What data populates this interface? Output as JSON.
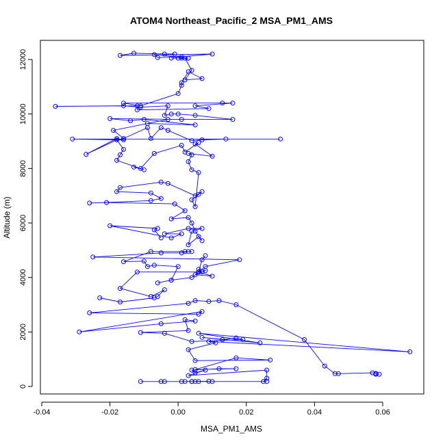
{
  "chart_data": {
    "type": "line",
    "title": "ATOM4 Northeast_Pacific_2 MSA_PM1_AMS",
    "xlabel": "MSA_PM1_AMS",
    "ylabel": "Altitude (m)",
    "xlim": [
      -0.04,
      0.07
    ],
    "ylim": [
      0,
      12200
    ],
    "xticks": [
      -0.04,
      -0.02,
      0.0,
      0.02,
      0.04,
      0.06
    ],
    "xtick_labels": [
      "-0.04",
      "-0.02",
      "0.00",
      "0.02",
      "0.04",
      "0.06"
    ],
    "yticks": [
      0,
      2000,
      4000,
      6000,
      8000,
      10000,
      12000
    ],
    "ytick_labels": [
      "0",
      "2000",
      "4000",
      "6000",
      "8000",
      "10000",
      "12000"
    ],
    "grid": false,
    "color": "#0000ff",
    "marker": "open-circle",
    "series": [
      {
        "points": [
          [
            0.005,
            180
          ],
          [
            0.01,
            180
          ],
          [
            0.004,
            180
          ],
          [
            -0.005,
            180
          ],
          [
            -0.011,
            180
          ],
          [
            -0.004,
            180
          ],
          [
            0.001,
            180
          ],
          [
            0.006,
            180
          ],
          [
            0.009,
            190
          ],
          [
            0.002,
            180
          ],
          [
            0.004,
            180
          ],
          [
            0.026,
            180
          ],
          [
            0.025,
            180
          ],
          [
            0.026,
            300
          ],
          [
            0.026,
            600
          ],
          [
            0.003,
            400
          ],
          [
            0.008,
            600
          ],
          [
            0.005,
            500
          ],
          [
            0.004,
            600
          ],
          [
            0.012,
            650
          ],
          [
            0.017,
            650
          ],
          [
            0.005,
            620
          ],
          [
            0.017,
            1050
          ],
          [
            0.027,
            970
          ],
          [
            0.005,
            950
          ],
          [
            0.003,
            1350
          ],
          [
            0.011,
            1600
          ],
          [
            0.009,
            1650
          ],
          [
            0.068,
            1270
          ],
          [
            0.006,
            1950
          ],
          [
            0.024,
            1600
          ],
          [
            0.007,
            1800
          ],
          [
            0.013,
            1720
          ],
          [
            0.017,
            1780
          ],
          [
            0.019,
            1720
          ],
          [
            0.004,
            1650
          ],
          [
            -0.004,
            1950
          ],
          [
            -0.011,
            1980
          ],
          [
            0.003,
            2050
          ],
          [
            0.002,
            2450
          ],
          [
            0.005,
            2400
          ],
          [
            -0.005,
            2300
          ],
          [
            -0.029,
            2000
          ],
          [
            0.007,
            2750
          ],
          [
            0.006,
            2650
          ],
          [
            -0.026,
            2700
          ],
          [
            0.003,
            3050
          ],
          [
            0.005,
            3150
          ],
          [
            0.009,
            3120
          ],
          [
            0.012,
            3150
          ],
          [
            0.017,
            3000
          ],
          [
            0.037,
            1720
          ],
          [
            0.043,
            750
          ],
          [
            0.046,
            470
          ],
          [
            0.047,
            470
          ],
          [
            0.057,
            500
          ],
          [
            0.058,
            480
          ],
          [
            0.059,
            450
          ],
          [
            0.058,
            450
          ]
        ]
      },
      {
        "points": [
          [
            -0.023,
            3250
          ],
          [
            -0.017,
            3100
          ],
          [
            -0.007,
            3250
          ],
          [
            -0.006,
            3300
          ],
          [
            -0.004,
            3550
          ],
          [
            -0.008,
            3300
          ],
          [
            -0.017,
            3600
          ],
          [
            -0.012,
            4200
          ],
          [
            0.007,
            4200
          ],
          [
            0.006,
            4300
          ],
          [
            0.008,
            4250
          ],
          [
            0.005,
            4100
          ],
          [
            0.01,
            4050
          ],
          [
            0.006,
            4200
          ],
          [
            0.004,
            4000
          ],
          [
            -0.002,
            3900
          ],
          [
            -0.006,
            3800
          ],
          [
            -0.002,
            3900
          ],
          [
            0.0,
            4400
          ],
          [
            -0.007,
            4450
          ],
          [
            -0.009,
            4400
          ],
          [
            -0.01,
            4600
          ],
          [
            -0.016,
            4580
          ],
          [
            -0.008,
            4950
          ],
          [
            0.002,
            4950
          ],
          [
            0.004,
            4950
          ],
          [
            0.003,
            4950
          ],
          [
            0.001,
            4900
          ],
          [
            -0.005,
            4900
          ],
          [
            -0.025,
            4750
          ],
          [
            0.018,
            4650
          ],
          [
            0.008,
            4400
          ],
          [
            0.006,
            4200
          ],
          [
            0.007,
            4650
          ],
          [
            0.008,
            4800
          ]
        ]
      },
      {
        "points": [
          [
            -0.005,
            5450
          ],
          [
            -0.007,
            5750
          ],
          [
            -0.006,
            5800
          ],
          [
            -0.02,
            5900
          ],
          [
            -0.002,
            5450
          ],
          [
            0.001,
            5600
          ],
          [
            -0.004,
            5600
          ],
          [
            0.003,
            5800
          ],
          [
            0.007,
            5800
          ],
          [
            0.004,
            5700
          ],
          [
            0.003,
            5200
          ],
          [
            0.006,
            5500
          ],
          [
            0.007,
            5350
          ],
          [
            0.005,
            5700
          ],
          [
            0.004,
            6000
          ],
          [
            0.003,
            6200
          ],
          [
            -0.002,
            6150
          ],
          [
            0.002,
            6450
          ],
          [
            -0.001,
            6700
          ],
          [
            -0.021,
            6750
          ],
          [
            -0.026,
            6730
          ],
          [
            -0.008,
            6820
          ],
          [
            -0.005,
            6900
          ],
          [
            -0.008,
            7100
          ],
          [
            -0.018,
            7150
          ],
          [
            -0.017,
            7300
          ],
          [
            -0.005,
            7500
          ],
          [
            -0.003,
            7450
          ],
          [
            0.005,
            7000
          ],
          [
            0.007,
            7150
          ],
          [
            0.006,
            7050
          ],
          [
            0.004,
            6850
          ],
          [
            0.005,
            6600
          ],
          [
            0.006,
            7850
          ],
          [
            0.004,
            7950
          ],
          [
            0.003,
            8250
          ],
          [
            0.004,
            8500
          ],
          [
            0.003,
            8550
          ],
          [
            0.01,
            8450
          ],
          [
            0.005,
            8900
          ],
          [
            0.006,
            8950
          ],
          [
            0.002,
            8600
          ],
          [
            0.001,
            8850
          ],
          [
            -0.007,
            8550
          ],
          [
            -0.011,
            8000
          ],
          [
            -0.013,
            8050
          ],
          [
            -0.01,
            7950
          ],
          [
            -0.018,
            8300
          ],
          [
            -0.017,
            8500
          ],
          [
            -0.016,
            8700
          ],
          [
            -0.018,
            9050
          ],
          [
            -0.027,
            8520
          ],
          [
            -0.018,
            9100
          ],
          [
            -0.016,
            9050
          ],
          [
            -0.031,
            9080
          ],
          [
            0.03,
            9080
          ],
          [
            0.014,
            9080
          ],
          [
            0.007,
            9050
          ],
          [
            0.004,
            9020
          ],
          [
            -0.003,
            9400
          ],
          [
            -0.005,
            9500
          ],
          [
            -0.008,
            9100
          ],
          [
            -0.009,
            9500
          ],
          [
            -0.016,
            9100
          ],
          [
            -0.019,
            9400
          ],
          [
            -0.003,
            9800
          ],
          [
            -0.009,
            9650
          ],
          [
            0.005,
            9600
          ],
          [
            -0.01,
            9800
          ],
          [
            -0.014,
            9750
          ],
          [
            -0.02,
            9830
          ],
          [
            0.001,
            9800
          ],
          [
            0.016,
            9800
          ],
          [
            0.005,
            9950
          ],
          [
            0.0,
            10000
          ],
          [
            -0.002,
            10000
          ],
          [
            -0.004,
            9950
          ],
          [
            -0.003,
            10300
          ],
          [
            -0.011,
            10250
          ],
          [
            -0.016,
            10300
          ],
          [
            -0.036,
            10280
          ],
          [
            -0.012,
            10300
          ],
          [
            -0.012,
            10150
          ],
          [
            0.009,
            10200
          ],
          [
            0.005,
            10300
          ],
          [
            0.016,
            10400
          ],
          [
            0.013,
            10400
          ],
          [
            -0.016,
            10400
          ],
          [
            -0.011,
            10300
          ],
          [
            0.0,
            10750
          ],
          [
            0.001,
            11050
          ],
          [
            0.001,
            11150
          ],
          [
            0.003,
            11550
          ],
          [
            0.007,
            11300
          ],
          [
            0.002,
            11250
          ],
          [
            0.004,
            11600
          ],
          [
            0.002,
            12050
          ],
          [
            -0.002,
            12050
          ],
          [
            0.0,
            12050
          ],
          [
            0.001,
            12050
          ],
          [
            0.003,
            12050
          ],
          [
            0.003,
            12050
          ],
          [
            -0.007,
            12180
          ],
          [
            -0.006,
            12070
          ],
          [
            0.001,
            12100
          ],
          [
            0.01,
            12200
          ],
          [
            -0.017,
            12150
          ],
          [
            -0.013,
            12230
          ],
          [
            -0.004,
            12200
          ],
          [
            -0.001,
            12200
          ]
        ]
      }
    ]
  }
}
